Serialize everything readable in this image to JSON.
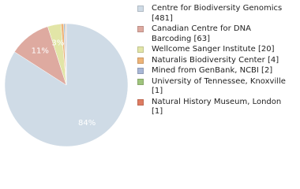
{
  "chart_data": {
    "type": "pie",
    "categories": [
      "Centre for Biodiversity Genomics [481]",
      "Canadian Centre for DNA Barcoding [63]",
      "Wellcome Sanger Institute [20]",
      "Naturalis Biodiversity Center [4]",
      "Mined from GenBank, NCBI [2]",
      "University of Tennessee, Knoxville [1]",
      "Natural History Museum, London [1]"
    ],
    "values": [
      481,
      63,
      20,
      4,
      2,
      1,
      1
    ],
    "value_labels": [
      "84%",
      "11%",
      "3%",
      null,
      null,
      null,
      null
    ],
    "colors": [
      "#cfdbe6",
      "#deaaa0",
      "#e2e5a7",
      "#eeb478",
      "#a8b7d6",
      "#9fc47d",
      "#de7c62"
    ]
  }
}
